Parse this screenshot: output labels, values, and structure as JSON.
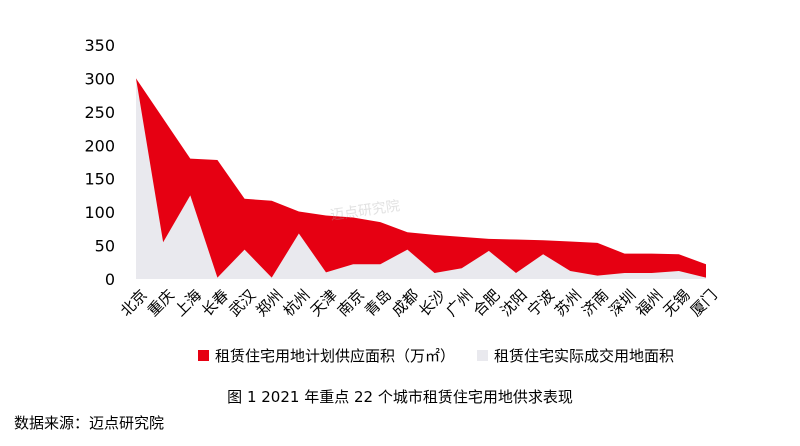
{
  "chart_data": {
    "type": "area",
    "categories": [
      "北京",
      "重庆",
      "上海",
      "长春",
      "武汉",
      "郑州",
      "杭州",
      "天津",
      "南京",
      "青岛",
      "成都",
      "长沙",
      "广州",
      "合肥",
      "沈阳",
      "宁波",
      "苏州",
      "济南",
      "深圳",
      "福州",
      "无锡",
      "厦门"
    ],
    "series": [
      {
        "name": "租赁住宅用地计划供应面积（万㎡）",
        "color": "#e60012",
        "values": [
          300,
          240,
          180,
          178,
          120,
          117,
          101,
          95,
          92,
          85,
          70,
          66,
          63,
          60,
          59,
          58,
          56,
          54,
          38,
          38,
          37,
          22
        ]
      },
      {
        "name": "租赁住宅实际成交用地面积",
        "color": "#e9e9ee",
        "values": [
          300,
          55,
          125,
          2,
          44,
          2,
          68,
          10,
          22,
          22,
          44,
          9,
          16,
          42,
          9,
          37,
          12,
          5,
          9,
          9,
          12,
          2
        ]
      }
    ],
    "yticks": [
      0,
      50,
      100,
      150,
      200,
      250,
      300,
      350
    ],
    "ylim": [
      0,
      350
    ]
  },
  "caption": "图 1 2021 年重点 22 个城市租赁住宅用地供求表现",
  "source": "数据来源：迈点研究院",
  "watermark": "迈点研究院"
}
